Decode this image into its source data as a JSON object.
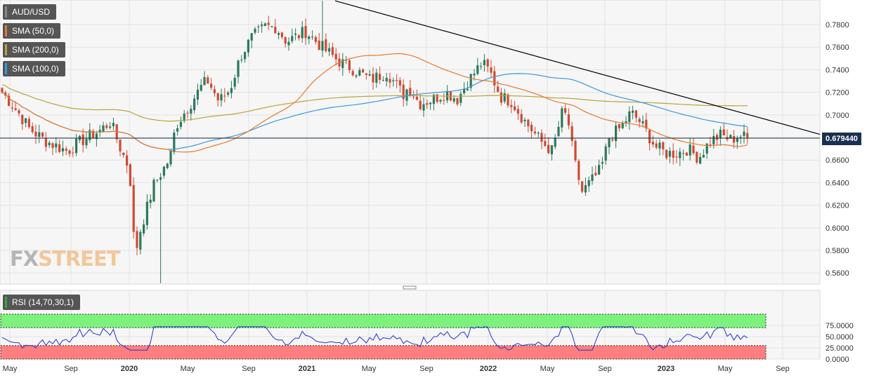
{
  "colors": {
    "up": "#2b7a5a",
    "down": "#d04a32",
    "sma50": "#e8792e",
    "sma100": "#3a9ad9",
    "sma200": "#b8a23c",
    "rsi": "#2233cc",
    "rsi_upper_fill": "#7cf27c",
    "rsi_lower_fill": "#ff7e7e",
    "trend": "#000000",
    "price_line": "#1b3050"
  },
  "legend": {
    "symbol": "AUD/USD",
    "sma50": "SMA (50,0)",
    "sma200": "SMA (200,0)",
    "sma100": "SMA (100,0)",
    "rsi": "RSI (14,70,30,1)"
  },
  "watermark": {
    "fx": "FX",
    "street": "STREET"
  },
  "chart_data": [
    {
      "type": "candlestick",
      "title": "",
      "series": [
        {
          "name": "AUD/USD",
          "kind": "candles",
          "interval": "weekly"
        },
        {
          "name": "SMA (50,0)",
          "kind": "line",
          "color": "#e8792e"
        },
        {
          "name": "SMA (200,0)",
          "kind": "line",
          "color": "#b8a23c"
        },
        {
          "name": "SMA (100,0)",
          "kind": "line",
          "color": "#3a9ad9"
        }
      ],
      "current_price": "0.679440",
      "ylim": [
        0.55,
        0.8
      ],
      "y_ticks": [
        "0.7800",
        "0.7600",
        "0.7400",
        "0.7200",
        "0.7000",
        "0.6800",
        "0.6600",
        "0.6400",
        "0.6200",
        "0.6000",
        "0.5800",
        "0.5600"
      ],
      "x_ticks": [
        "May",
        "Sep",
        "2020",
        "May",
        "Sep",
        "2021",
        "May",
        "Sep",
        "2022",
        "May",
        "Sep",
        "2023",
        "May",
        "Sep"
      ],
      "key_levels": {
        "high": 0.801,
        "low": 0.551,
        "close": 0.6794
      },
      "trendline": {
        "from": [
          0.801,
          "Feb 2021"
        ],
        "to": [
          0.695,
          "Jul 2023"
        ]
      },
      "grid": true
    },
    {
      "type": "line",
      "title": "RSI (14,70,30,1)",
      "ylim": [
        0,
        100
      ],
      "y_ticks": [
        "75.0000",
        "50.0000",
        "25.0000",
        "0.0000"
      ],
      "bands": {
        "upper": 70,
        "lower": 30
      },
      "grid": true
    }
  ]
}
